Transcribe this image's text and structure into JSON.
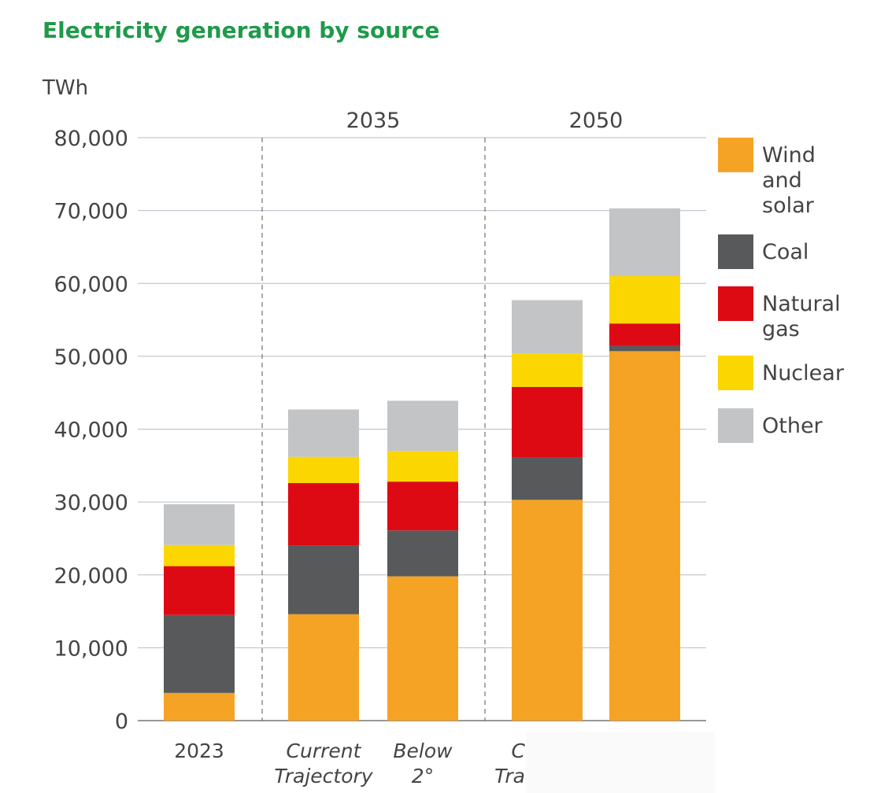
{
  "chart_data": {
    "type": "bar",
    "stacked": true,
    "title": "Electricity generation by source",
    "ylabel": "TWh",
    "ylim": [
      0,
      80000
    ],
    "yticks": [
      "0",
      "10,000",
      "20,000",
      "30,000",
      "40,000",
      "50,000",
      "60,000",
      "70,000",
      "80,000"
    ],
    "grid": true,
    "legend_placement": "right",
    "groups": [
      {
        "label": "",
        "categories": [
          0
        ]
      },
      {
        "label": "2035",
        "categories": [
          1,
          2
        ]
      },
      {
        "label": "2050",
        "categories": [
          3,
          4
        ]
      }
    ],
    "categories": [
      [
        "2023"
      ],
      [
        "Current",
        "Trajectory"
      ],
      [
        "Below",
        "2°"
      ],
      [
        "C",
        "Tra"
      ],
      []
    ],
    "series": [
      {
        "name": "Wind and solar",
        "legend_lines": [
          "Wind",
          "and",
          "solar"
        ],
        "color": "#f5a325",
        "values": [
          3800,
          14600,
          19800,
          30300,
          50700
        ]
      },
      {
        "name": "Coal",
        "legend_lines": [
          "Coal"
        ],
        "color": "#58595b",
        "values": [
          10700,
          9400,
          6300,
          5800,
          700
        ]
      },
      {
        "name": "Natural gas",
        "legend_lines": [
          "Natural",
          "gas"
        ],
        "color": "#dd0a14",
        "values": [
          6700,
          8600,
          6700,
          9700,
          3100
        ]
      },
      {
        "name": "Nuclear",
        "legend_lines": [
          "Nuclear"
        ],
        "color": "#fcd600",
        "values": [
          2900,
          3600,
          4200,
          4600,
          6500
        ]
      },
      {
        "name": "Other",
        "legend_lines": [
          "Other"
        ],
        "color": "#c3c4c6",
        "values": [
          5600,
          6500,
          6900,
          7300,
          9300
        ]
      }
    ],
    "title_color": "#1f9a4a"
  }
}
